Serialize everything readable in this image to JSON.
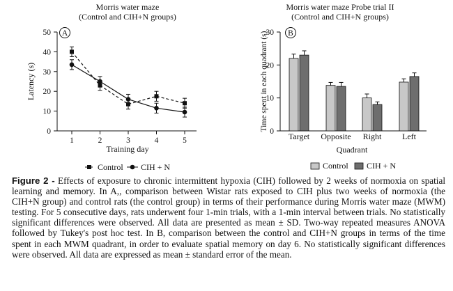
{
  "chart_data": [
    {
      "type": "line",
      "panel": "A",
      "title": "Morris water maze",
      "subtitle": "(Control and CIH+N groups)",
      "xlabel": "Training day",
      "ylabel": "Latency (s)",
      "x": [
        1,
        2,
        3,
        4,
        5
      ],
      "ylim": [
        0,
        50
      ],
      "yticks": [
        0,
        10,
        20,
        30,
        40,
        50
      ],
      "grid": false,
      "legend_position": "bottom",
      "series": [
        {
          "name": "Control",
          "values": [
            40,
            23,
            13.5,
            17.5,
            14
          ],
          "errors": [
            2.5,
            2.5,
            2.5,
            2.5,
            2.5
          ],
          "marker": "square",
          "line": "dashed"
        },
        {
          "name": "CIH + N",
          "values": [
            33.5,
            25,
            16,
            11.5,
            9.5
          ],
          "errors": [
            2.5,
            2.5,
            2.5,
            2.5,
            2.5
          ],
          "marker": "circle",
          "line": "solid"
        }
      ]
    },
    {
      "type": "bar",
      "panel": "B",
      "title": "Morris water maze Probe trial II",
      "subtitle": "(Control and CIH+N groups)",
      "xlabel": "Quadrant",
      "ylabel": "Time spent in each quadrant (s)",
      "categories": [
        "Target",
        "Opposite",
        "Right",
        "Left"
      ],
      "ylim": [
        0,
        30
      ],
      "yticks": [
        0,
        10,
        20,
        30
      ],
      "grid": false,
      "legend_position": "bottom",
      "series": [
        {
          "name": "Control",
          "values": [
            22,
            13.8,
            10,
            14.8
          ],
          "errors": [
            1.3,
            0.9,
            1.2,
            1.0
          ],
          "color": "#c8c8c8"
        },
        {
          "name": "CIH + N",
          "values": [
            23,
            13.5,
            8,
            16.5
          ],
          "errors": [
            1.3,
            1.2,
            0.8,
            1.1
          ],
          "color": "#6e6e6e"
        }
      ]
    }
  ],
  "caption": {
    "label": "Figure 2 -",
    "text": "Effects of exposure to chronic intermittent hypoxia (CIH) followed by 2 weeks of normoxia on spatial learning and memory. In A,, comparison between Wistar rats exposed to CIH plus two weeks of normoxia (the CIH+N group) and control rats (the control group) in terms of their performance during Morris water maze (MWM) testing. For 5 consecutive days, rats underwent four 1-min trials, with a 1-min interval between trials. No statistically significant differences were observed. All data are presented as mean ± SD. Two-way repeated measures ANOVA followed by Tukey's post hoc test. In B, comparison between the control and CIH+N groups in terms of the time spent in each MWM quadrant, in order to evaluate spatial memory on day 6. No statistically significant differences were observed. All data are expressed as mean ± standard error of the mean."
  }
}
